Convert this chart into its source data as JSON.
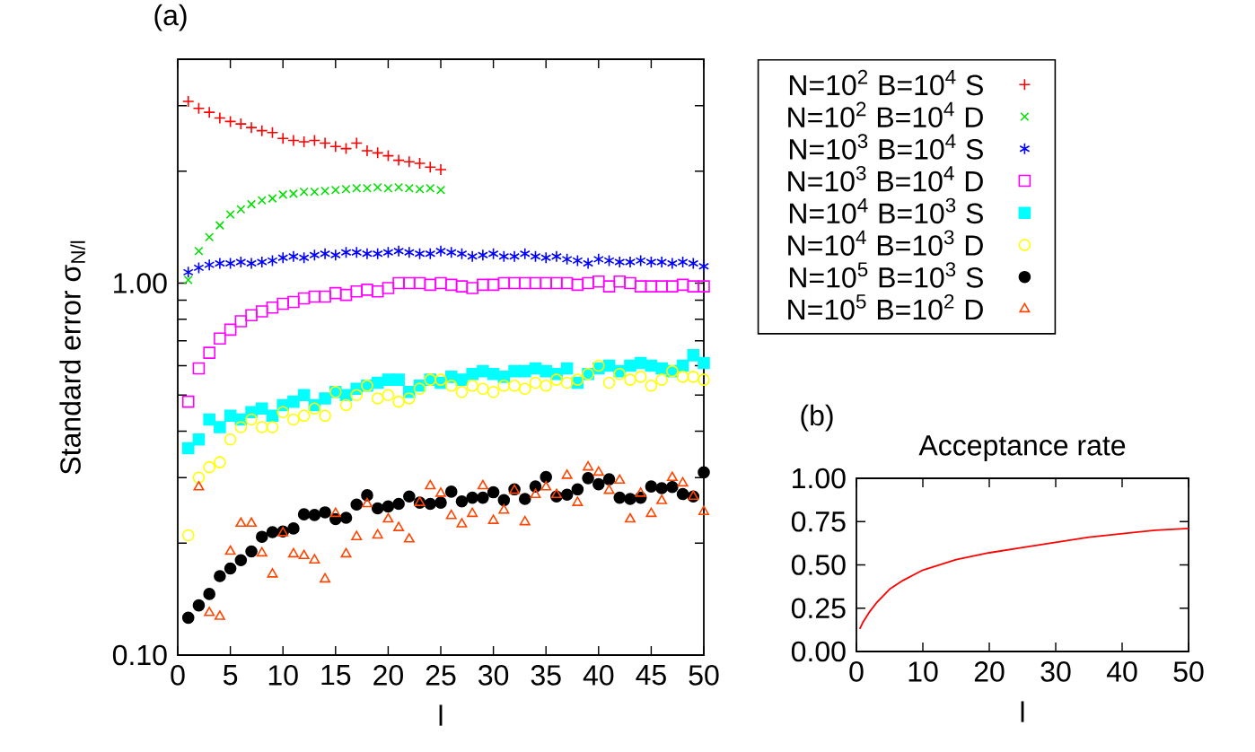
{
  "chart_data": [
    {
      "type": "scatter",
      "xlabel": "l",
      "ylabel": "Standard error σ$_{N/l}$",
      "annotations": [
        "(a)"
      ],
      "log": true,
      "legend": "right",
      "xlim": [
        0,
        50
      ],
      "ylim": [
        0.1,
        4
      ],
      "xticks": [
        0,
        5,
        10,
        15,
        20,
        25,
        30,
        35,
        40,
        45,
        50
      ],
      "yticks": [
        {
          "value": 0.1,
          "label": "0.10"
        },
        {
          "value": 0.2,
          "label": null
        },
        {
          "value": 0.3,
          "label": null
        },
        {
          "value": 0.4,
          "label": null
        },
        {
          "value": 0.5,
          "label": null
        },
        {
          "value": 0.6,
          "label": null
        },
        {
          "value": 0.7,
          "label": null
        },
        {
          "value": 0.8,
          "label": null
        },
        {
          "value": 0.9,
          "label": null
        },
        {
          "value": 1,
          "label": "1.00"
        },
        {
          "value": 2,
          "label": null
        },
        {
          "value": 3,
          "label": null
        },
        {
          "value": 4,
          "label": null
        }
      ],
      "x": [
        1,
        2,
        3,
        4,
        5,
        6,
        7,
        8,
        9,
        10,
        11,
        12,
        13,
        14,
        15,
        16,
        17,
        18,
        19,
        20,
        21,
        22,
        23,
        24,
        25,
        26,
        27,
        28,
        29,
        30,
        31,
        32,
        33,
        34,
        35,
        36,
        37,
        38,
        39,
        40,
        41,
        42,
        43,
        44,
        45,
        46,
        47,
        48,
        49,
        50
      ],
      "series": [
        {
          "name": "N=10$^{2}$ B=10$^{4}$ S",
          "color": "#ff0000",
          "marker": "cross",
          "x": [
            1,
            2,
            3,
            4,
            5,
            6,
            7,
            8,
            9,
            10,
            11,
            12,
            13,
            14,
            15,
            16,
            17,
            18,
            19,
            20,
            21,
            22,
            23,
            24,
            25
          ],
          "values": [
            3.08,
            2.95,
            2.88,
            2.78,
            2.72,
            2.68,
            2.62,
            2.57,
            2.54,
            2.45,
            2.42,
            2.4,
            2.42,
            2.38,
            2.33,
            2.3,
            2.38,
            2.27,
            2.24,
            2.2,
            2.14,
            2.12,
            2.1,
            2.05,
            2.02
          ]
        },
        {
          "name": "N=10$^{2}$ B=10$^{4}$ D",
          "color": "#00e000",
          "marker": "cross",
          "x": [
            1,
            2,
            3,
            4,
            5,
            6,
            7,
            8,
            9,
            10,
            11,
            12,
            13,
            14,
            15,
            16,
            17,
            18,
            19,
            20,
            21,
            22,
            23,
            24,
            25
          ],
          "values": [
            1.02,
            1.22,
            1.33,
            1.43,
            1.53,
            1.58,
            1.63,
            1.67,
            1.69,
            1.73,
            1.74,
            1.76,
            1.76,
            1.77,
            1.78,
            1.79,
            1.8,
            1.8,
            1.81,
            1.8,
            1.81,
            1.8,
            1.79,
            1.8,
            1.78
          ]
        },
        {
          "name": "N=10$^{3}$ B=10$^{4}$ S",
          "color": "#0000ff",
          "marker": "cross",
          "values": [
            1.07,
            1.1,
            1.12,
            1.13,
            1.13,
            1.14,
            1.13,
            1.14,
            1.15,
            1.17,
            1.18,
            1.17,
            1.19,
            1.2,
            1.19,
            1.21,
            1.21,
            1.2,
            1.2,
            1.21,
            1.22,
            1.21,
            1.2,
            1.2,
            1.22,
            1.21,
            1.2,
            1.18,
            1.19,
            1.2,
            1.18,
            1.18,
            1.2,
            1.18,
            1.17,
            1.18,
            1.16,
            1.15,
            1.13,
            1.16,
            1.15,
            1.14,
            1.14,
            1.15,
            1.14,
            1.14,
            1.13,
            1.14,
            1.13,
            1.11
          ]
        },
        {
          "name": "N=10$^{3}$ B=10$^{4}$ D",
          "color": "#ff00ff",
          "marker": "square",
          "values": [
            0.48,
            0.59,
            0.65,
            0.71,
            0.75,
            0.79,
            0.82,
            0.84,
            0.86,
            0.88,
            0.89,
            0.91,
            0.92,
            0.92,
            0.94,
            0.93,
            0.95,
            0.96,
            0.95,
            0.97,
            1.0,
            1.0,
            1.0,
            0.99,
            1.0,
            0.99,
            0.98,
            0.97,
            0.99,
            0.99,
            1.0,
            1.0,
            1.0,
            1.0,
            1.0,
            1.0,
            1.0,
            0.99,
            1.0,
            1.01,
            0.98,
            1.01,
            1.0,
            0.98,
            0.98,
            0.98,
            0.98,
            0.99,
            0.98,
            0.98
          ]
        },
        {
          "name": "N=10$^{4}$ B=10$^{3}$ S",
          "color": "#00ffff",
          "marker": "square",
          "values": [
            0.36,
            0.38,
            0.43,
            0.41,
            0.44,
            0.43,
            0.45,
            0.46,
            0.44,
            0.47,
            0.48,
            0.5,
            0.47,
            0.49,
            0.51,
            0.5,
            0.52,
            0.53,
            0.54,
            0.55,
            0.55,
            0.51,
            0.53,
            0.55,
            0.54,
            0.56,
            0.55,
            0.57,
            0.58,
            0.57,
            0.56,
            0.58,
            0.58,
            0.59,
            0.58,
            0.57,
            0.59,
            0.54,
            0.57,
            0.59,
            0.6,
            0.58,
            0.6,
            0.61,
            0.6,
            0.59,
            0.58,
            0.6,
            0.64,
            0.61
          ]
        },
        {
          "name": "N=10$^{4}$ B=10$^{3}$ D",
          "color": "#ffff00",
          "marker": "circle",
          "values": [
            0.21,
            0.3,
            0.32,
            0.33,
            0.38,
            0.41,
            0.43,
            0.41,
            0.41,
            0.45,
            0.43,
            0.44,
            0.46,
            0.44,
            0.51,
            0.47,
            0.5,
            0.53,
            0.49,
            0.5,
            0.48,
            0.49,
            0.52,
            0.55,
            0.55,
            0.53,
            0.51,
            0.53,
            0.52,
            0.51,
            0.53,
            0.53,
            0.52,
            0.54,
            0.53,
            0.55,
            0.54,
            0.55,
            0.57,
            0.6,
            0.54,
            0.57,
            0.55,
            0.56,
            0.53,
            0.55,
            0.58,
            0.56,
            0.56,
            0.55
          ]
        },
        {
          "name": "N=10$^{5}$ B=10$^{3}$ S",
          "color": "#000000",
          "marker": "circle",
          "values": [
            0.126,
            0.136,
            0.146,
            0.163,
            0.171,
            0.18,
            0.19,
            0.208,
            0.214,
            0.215,
            0.219,
            0.239,
            0.238,
            0.242,
            0.232,
            0.234,
            0.254,
            0.269,
            0.248,
            0.251,
            0.255,
            0.267,
            0.257,
            0.255,
            0.257,
            0.275,
            0.259,
            0.265,
            0.265,
            0.274,
            0.261,
            0.279,
            0.263,
            0.284,
            0.301,
            0.267,
            0.27,
            0.279,
            0.299,
            0.288,
            0.297,
            0.265,
            0.263,
            0.265,
            0.284,
            0.281,
            0.283,
            0.271,
            0.267,
            0.31
          ]
        },
        {
          "name": "N=10$^{5}$ B=10$^{2}$ D",
          "color": "#ff4500",
          "marker": "triangle",
          "x": [
            2,
            3,
            4,
            5,
            6,
            7,
            8,
            9,
            10,
            11,
            12,
            13,
            14,
            15,
            16,
            17,
            18,
            19,
            20,
            21,
            22,
            23,
            24,
            25,
            26,
            27,
            28,
            29,
            30,
            31,
            32,
            33,
            34,
            35,
            36,
            37,
            38,
            39,
            40,
            41,
            42,
            43,
            44,
            45,
            46,
            47,
            48,
            49,
            50
          ],
          "values": [
            0.283,
            0.13,
            0.127,
            0.19,
            0.226,
            0.226,
            0.188,
            0.165,
            0.213,
            0.187,
            0.185,
            0.18,
            0.16,
            0.24,
            0.187,
            0.208,
            0.255,
            0.21,
            0.232,
            0.22,
            0.205,
            0.257,
            0.285,
            0.272,
            0.237,
            0.225,
            0.24,
            0.285,
            0.23,
            0.245,
            0.277,
            0.228,
            0.27,
            0.283,
            0.27,
            0.304,
            0.257,
            0.32,
            0.31,
            0.277,
            0.295,
            0.232,
            0.272,
            0.24,
            0.26,
            0.3,
            0.29,
            0.267,
            0.243
          ]
        }
      ]
    },
    {
      "type": "line",
      "title": "Acceptance rate",
      "xlabel": "l",
      "annotations": [
        "(b)"
      ],
      "xlim": [
        0,
        50
      ],
      "ylim": [
        0,
        1
      ],
      "xticks": [
        0,
        10,
        20,
        30,
        40,
        50
      ],
      "yticks": [
        {
          "value": 0,
          "label": "0.00"
        },
        {
          "value": 0.25,
          "label": "0.25"
        },
        {
          "value": 0.5,
          "label": "0.50"
        },
        {
          "value": 0.75,
          "label": "0.75"
        },
        {
          "value": 1,
          "label": "1.00"
        }
      ],
      "x": [
        0.5,
        1,
        2,
        3,
        4,
        5,
        7,
        10,
        15,
        20,
        25,
        30,
        35,
        40,
        45,
        50
      ],
      "series": [
        {
          "color": "#ff0000",
          "values": [
            0.13,
            0.17,
            0.23,
            0.28,
            0.32,
            0.36,
            0.41,
            0.47,
            0.53,
            0.57,
            0.6,
            0.63,
            0.66,
            0.68,
            0.7,
            0.71
          ]
        }
      ]
    }
  ]
}
